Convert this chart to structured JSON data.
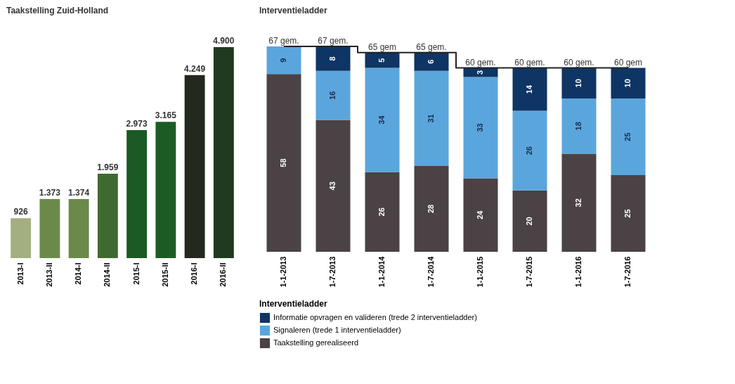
{
  "chart_data": [
    {
      "type": "bar",
      "title": "Taakstelling Zuid-Holland",
      "categories": [
        "2013-I",
        "2013-II",
        "2014-I",
        "2014-II",
        "2015-I",
        "2015-II",
        "2016-I",
        "2016-II"
      ],
      "values": [
        926,
        1373,
        1374,
        1959,
        2973,
        3165,
        4249,
        4900
      ],
      "value_labels": [
        "926",
        "1.373",
        "1.374",
        "1.959",
        "2.973",
        "3.165",
        "4.249",
        "4.900"
      ],
      "colors": [
        "#a3af7e",
        "#6b8a4a",
        "#6b8a4a",
        "#3f6a2f",
        "#1b5a24",
        "#1d5b25",
        "#23291f",
        "#1f3a1f"
      ],
      "tick_labels": "x"
    },
    {
      "type": "bar",
      "title": "Interventieladder",
      "stacked": true,
      "legend": "bottom",
      "legend_title": "Interventieladder",
      "tick_labels": "x",
      "data_labels": true,
      "categories": [
        "1-1-2013",
        "1-7-2013",
        "1-1-2014",
        "1-7-2014",
        "1-1-2015",
        "1-7-2015",
        "1-1-2016",
        "1-7-2016"
      ],
      "series": [
        {
          "name": "Taakstelling gerealiseerd",
          "color": "#4a4245",
          "values": [
            58,
            43,
            26,
            28,
            24,
            20,
            32,
            25
          ]
        },
        {
          "name": "Signaleren (trede 1 interventieladder)",
          "color": "#5aa6dc",
          "values": [
            9,
            16,
            34,
            31,
            33,
            26,
            18,
            25
          ]
        },
        {
          "name": "Informatie opvragen en valideren (trede 2 interventieladder)",
          "color": "#0e3564",
          "values": [
            null,
            8,
            5,
            6,
            3,
            14,
            10,
            10
          ]
        },
        {
          "type": "step",
          "color": "#222222",
          "values": [
            67,
            67,
            65,
            65,
            60,
            60,
            60,
            60
          ],
          "value_labels": [
            "67 gem.",
            "67 gem.",
            "65 gem",
            "65 gem.",
            "60 gem.",
            "60 gem.",
            "60 gem.",
            "60 gem"
          ]
        }
      ]
    }
  ]
}
